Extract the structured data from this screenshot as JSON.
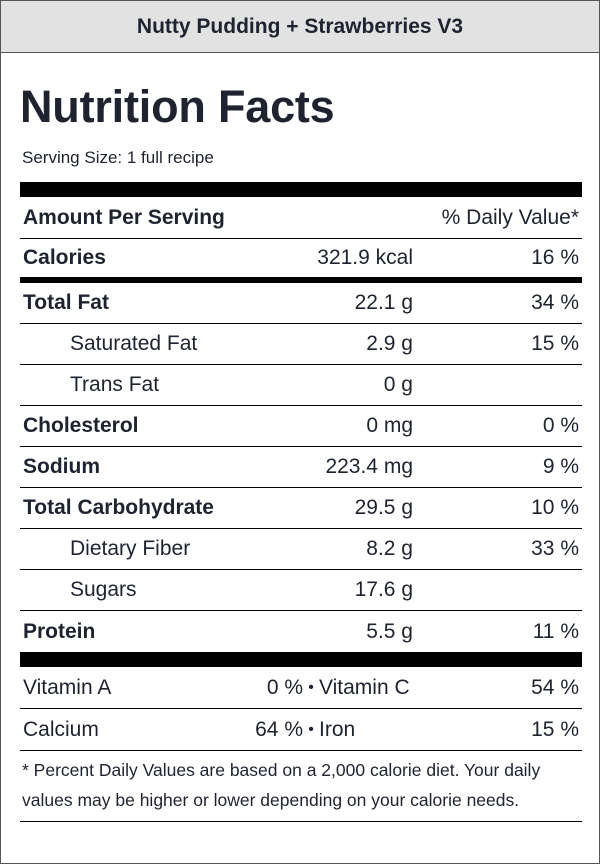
{
  "recipe_title": "Nutty Pudding + Strawberries V3",
  "facts_heading": "Nutrition Facts",
  "serving_size": "Serving Size: 1 full recipe",
  "header": {
    "amount_per_serving": "Amount Per Serving",
    "daily_value": "% Daily Value*"
  },
  "calories": {
    "label": "Calories",
    "amount": "321.9 kcal",
    "pct": "16 %"
  },
  "nutrients": [
    {
      "label": "Total Fat",
      "amount": "22.1 g",
      "pct": "34 %"
    },
    {
      "label": "Saturated Fat",
      "amount": "2.9 g",
      "pct": "15 %"
    },
    {
      "label": "Trans Fat",
      "amount": "0 g",
      "pct": ""
    },
    {
      "label": "Cholesterol",
      "amount": "0 mg",
      "pct": "0 %"
    },
    {
      "label": "Sodium",
      "amount": "223.4 mg",
      "pct": "9 %"
    },
    {
      "label": "Total Carbohydrate",
      "amount": "29.5 g",
      "pct": "10 %"
    },
    {
      "label": "Dietary Fiber",
      "amount": "8.2 g",
      "pct": "33 %"
    },
    {
      "label": "Sugars",
      "amount": "17.6 g",
      "pct": ""
    },
    {
      "label": "Protein",
      "amount": "5.5 g",
      "pct": "11 %"
    }
  ],
  "vitamins": [
    {
      "name1": "Vitamin A",
      "pct1": "0 %",
      "bullet": "•",
      "name2": "Vitamin C",
      "pct2": "54 %"
    },
    {
      "name1": "Calcium",
      "pct1": "64 %",
      "bullet": "•",
      "name2": "Iron",
      "pct2": "15 %"
    }
  ],
  "footnote": "* Percent Daily Values are based on a 2,000 calorie diet. Your daily values may be higher or lower depending on your calorie needs."
}
